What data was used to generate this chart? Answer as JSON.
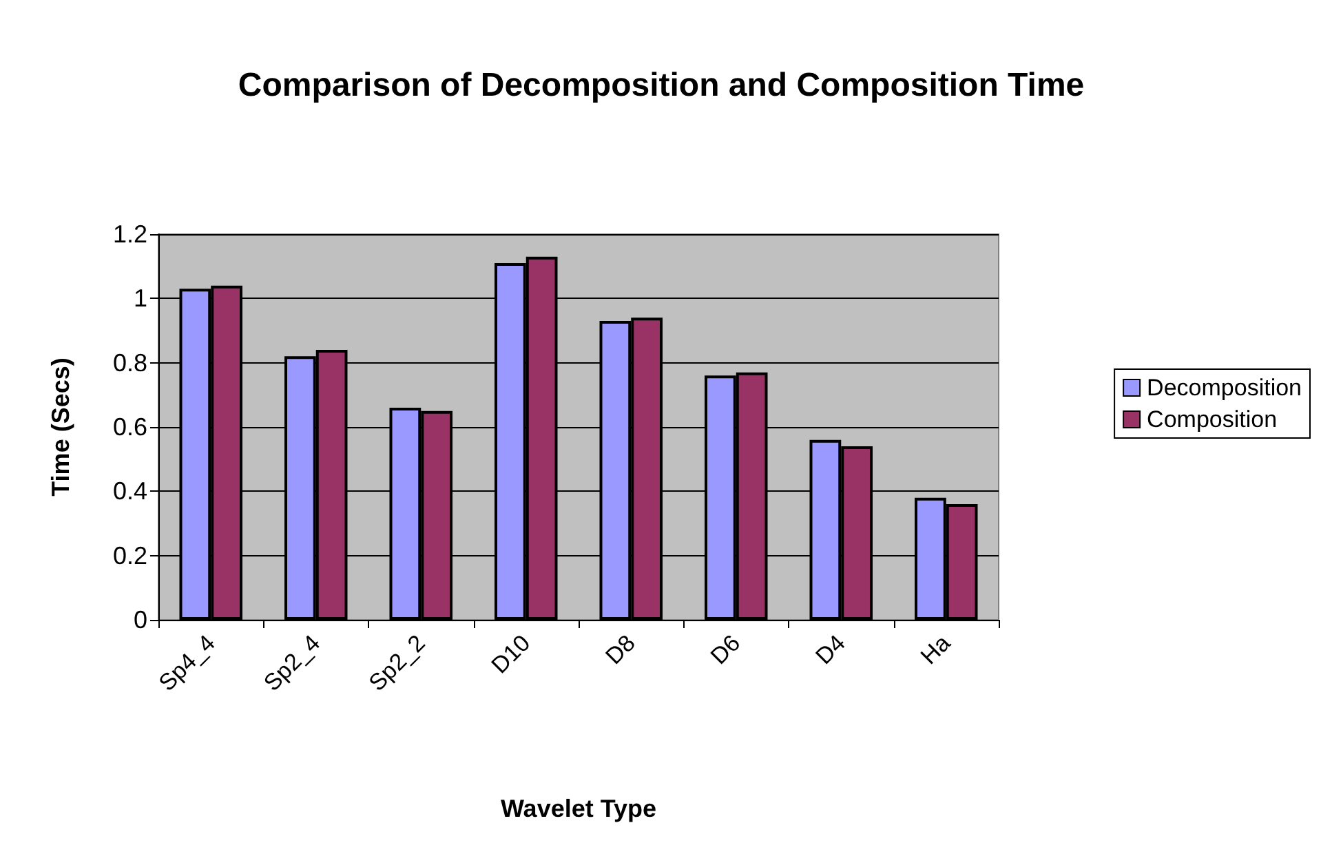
{
  "chart_data": {
    "type": "bar",
    "title": "Comparison of Decomposition and Composition Time",
    "xlabel": "Wavelet Type",
    "ylabel": "Time (Secs)",
    "categories": [
      "Sp4_4",
      "Sp2_4",
      "Sp2_2",
      "D10",
      "D8",
      "D6",
      "D4",
      "Ha"
    ],
    "series": [
      {
        "name": "Decomposition",
        "color": "#9999ff",
        "values": [
          1.03,
          0.82,
          0.66,
          1.11,
          0.93,
          0.76,
          0.56,
          0.38
        ]
      },
      {
        "name": "Composition",
        "color": "#993366",
        "values": [
          1.04,
          0.84,
          0.65,
          1.13,
          0.94,
          0.77,
          0.54,
          0.36
        ]
      }
    ],
    "ylim": [
      0,
      1.2
    ],
    "yticks": [
      0,
      0.2,
      0.4,
      0.6,
      0.8,
      1,
      1.2
    ],
    "grid": "y",
    "legend": "right"
  }
}
